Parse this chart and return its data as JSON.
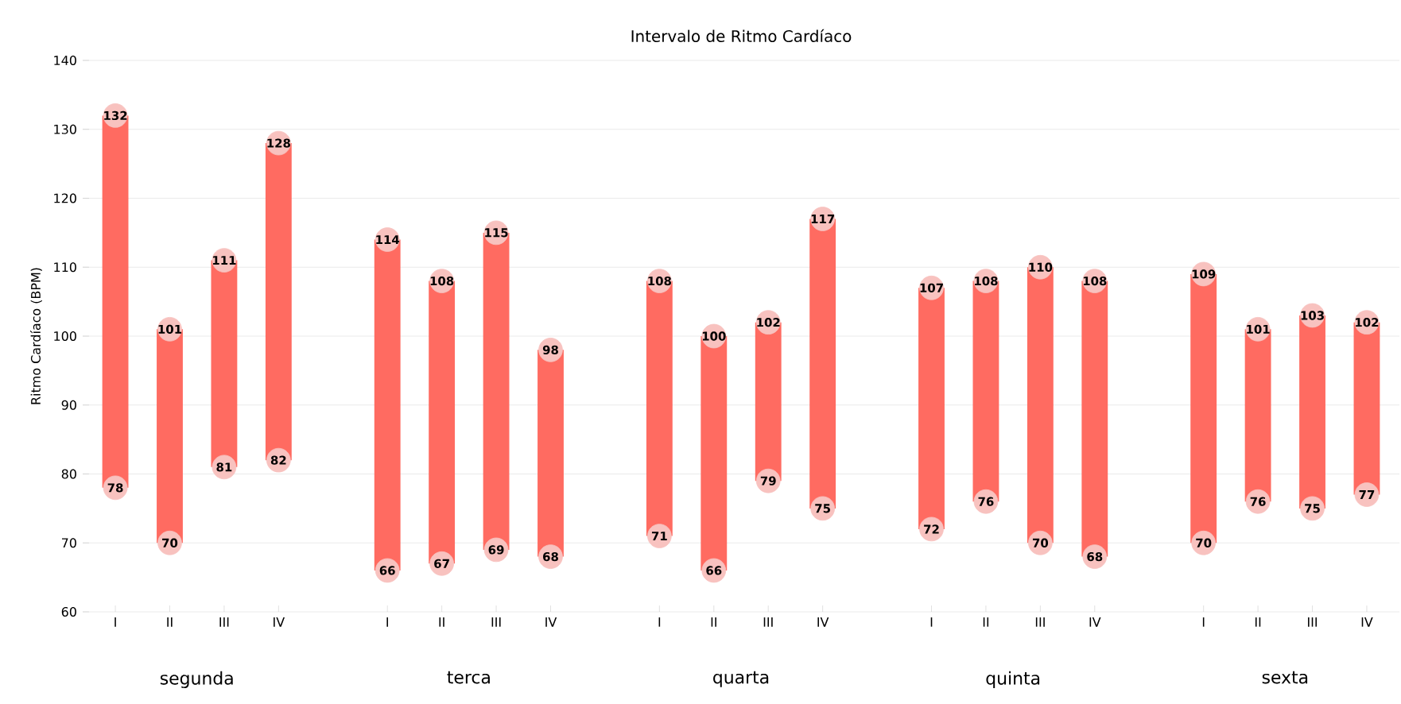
{
  "chart_data": {
    "type": "bar",
    "title": "Intervalo de Ritmo Cardíaco",
    "ylabel": "Ritmo Cardíaco (BPM)",
    "categories": [
      "I",
      "II",
      "III",
      "IV",
      null,
      "I",
      "II",
      "III",
      "IV",
      null,
      "I",
      "II",
      "III",
      "IV",
      null,
      "I",
      "II",
      "III",
      "IV",
      null,
      "I",
      "II",
      "III",
      "IV"
    ],
    "annotations": [
      "segunda",
      "terca",
      "quarta",
      "quinta",
      "sexta"
    ],
    "ylim": [
      60,
      140
    ],
    "yticks": [
      60,
      70,
      80,
      90,
      100,
      110,
      120,
      130,
      140
    ],
    "grid": "y",
    "series": [
      {
        "color": "#ff6b61",
        "base": [
          78,
          70,
          81,
          82,
          null,
          66,
          67,
          69,
          68,
          null,
          71,
          66,
          79,
          75,
          null,
          72,
          76,
          70,
          68,
          null,
          70,
          76,
          75,
          77
        ],
        "values": [
          54,
          31,
          30,
          46,
          null,
          48,
          41,
          46,
          30,
          null,
          37,
          34,
          23,
          42,
          null,
          35,
          32,
          40,
          40,
          null,
          39,
          25,
          28,
          25
        ]
      },
      {
        "type": "scatter",
        "color": "#f8c2bf",
        "marker": "circle",
        "data_labels": true,
        "values": [
          78,
          70,
          81,
          82,
          null,
          66,
          67,
          69,
          68,
          null,
          71,
          66,
          79,
          75,
          null,
          72,
          76,
          70,
          68,
          null,
          70,
          76,
          75,
          77
        ]
      },
      {
        "type": "scatter",
        "color": "#f8c2bf",
        "marker": "circle",
        "data_labels": true,
        "values": [
          132,
          101,
          111,
          128,
          null,
          114,
          108,
          115,
          98,
          null,
          108,
          100,
          102,
          117,
          null,
          107,
          108,
          110,
          108,
          null,
          109,
          101,
          103,
          102
        ]
      }
    ]
  }
}
